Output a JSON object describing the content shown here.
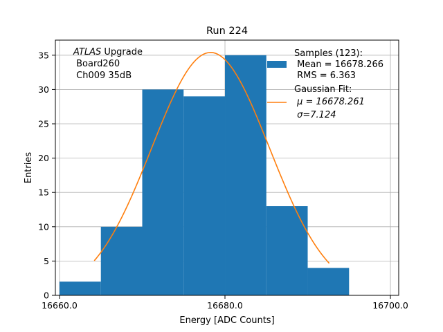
{
  "chart_data": {
    "type": "bar",
    "title": "Run 224",
    "xlabel": "Energy [ADC Counts]",
    "ylabel": "Entries",
    "xlim": [
      16659.5,
      16701.0
    ],
    "ylim": [
      0,
      37.2
    ],
    "grid": true,
    "xticks": [
      16660.0,
      16680.0,
      16700.0
    ],
    "xtick_labels": [
      "16660.0",
      "16680.0",
      "16700.0"
    ],
    "yticks": [
      0,
      5,
      10,
      15,
      20,
      25,
      30,
      35
    ],
    "ytick_labels": [
      "0",
      "5",
      "10",
      "15",
      "20",
      "25",
      "30",
      "35"
    ],
    "bins": [
      {
        "x0": 16660.0,
        "x1": 16665.0,
        "count": 2
      },
      {
        "x0": 16665.0,
        "x1": 16670.0,
        "count": 10
      },
      {
        "x0": 16670.0,
        "x1": 16675.0,
        "count": 30
      },
      {
        "x0": 16675.0,
        "x1": 16680.0,
        "count": 29
      },
      {
        "x0": 16680.0,
        "x1": 16685.0,
        "count": 35
      },
      {
        "x0": 16685.0,
        "x1": 16690.0,
        "count": 13
      },
      {
        "x0": 16690.0,
        "x1": 16695.0,
        "count": 4
      }
    ],
    "fit": {
      "type": "gaussian",
      "mu": 16678.261,
      "sigma": 7.124,
      "amplitude": 35.4,
      "x_range": [
        16664.2,
        16692.6
      ]
    },
    "colors": {
      "bars": "#1f77b4",
      "fit": "#ff7f0e",
      "grid": "#b0b0b0"
    },
    "annotation": {
      "italic": "ATLAS",
      "rest": " Upgrade",
      "lines": [
        " Board260",
        " Ch009 35dB"
      ]
    },
    "legend": {
      "placement": "top-right",
      "samples_lines": [
        "Samples (123):",
        " Mean = 16678.266",
        " RMS = 6.363"
      ],
      "fit_lines": [
        "Gaussian Fit:",
        " μ = 16678.261",
        " σ=7.124"
      ]
    }
  }
}
